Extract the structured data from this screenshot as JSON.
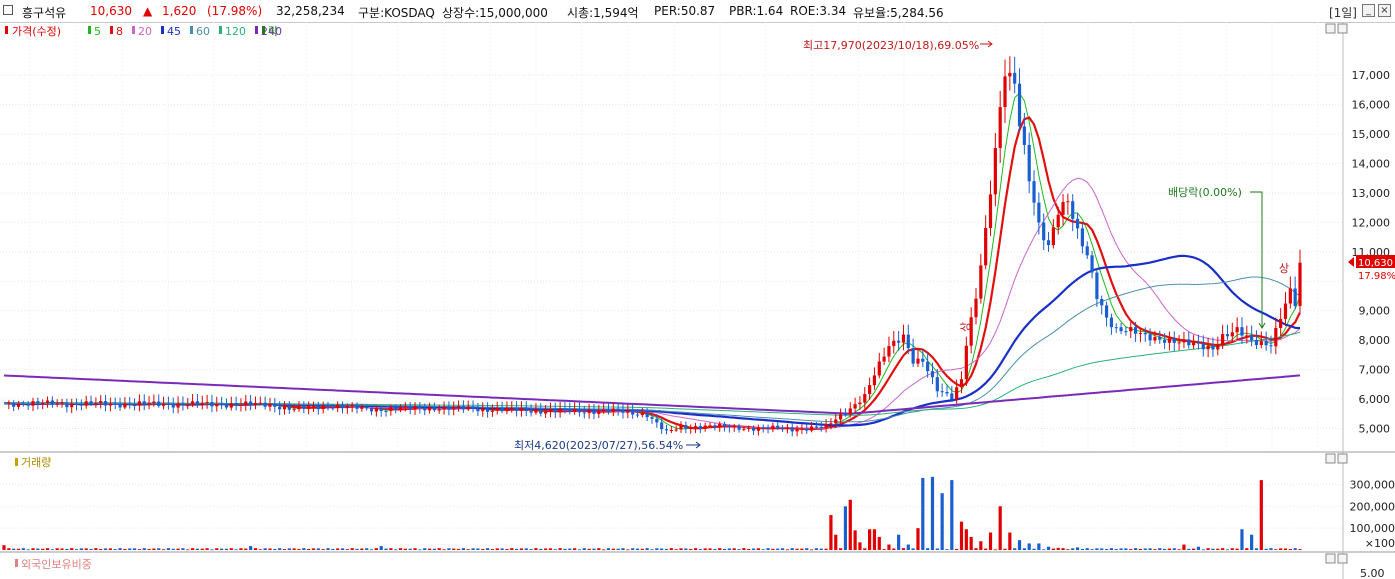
{
  "header": {
    "stock_name": "흥구석유",
    "price": "10,630",
    "arrow": "▲",
    "change": "1,620",
    "change_pct": "(17.98%)",
    "volume": "32,258,234",
    "market": "구분:KOSDAQ",
    "listed_shares": "상장수:15,000,000",
    "market_cap": "시총:1,594억",
    "per": "PER:50.87",
    "pbr": "PBR:1.64",
    "roe": "ROE:3.34",
    "float": "유보율:5,284.56",
    "period": "[1일]",
    "up_color": "#e00000"
  },
  "legend": {
    "price_label": "가격(수정)",
    "ma": [
      {
        "label": "5",
        "color": "#1fb81f"
      },
      {
        "label": "8",
        "color": "#e01010"
      },
      {
        "label": "20",
        "color": "#cc66cc"
      },
      {
        "label": "45",
        "color": "#1a2fc8"
      },
      {
        "label": "60",
        "color": "#4a8fb0"
      },
      {
        "label": "120",
        "color": "#2bb07a"
      },
      {
        "label": "240",
        "color": "#7a2ab8"
      }
    ],
    "ex_label": "락",
    "volume_label": "거래량",
    "foreign_label": "외국인보유비중"
  },
  "annotations": {
    "high": "최고17,970(2023/10/18),69.05%",
    "low": "최저4,620(2023/07/27),56.54%",
    "dividend": "배당락(0.00%)",
    "up_mark": "상"
  },
  "last_price_tag": {
    "price": "10,630",
    "pct": "17.98%"
  },
  "chart_data": [
    {
      "type": "candlestick",
      "title": "",
      "ylim": [
        4200,
        18400
      ],
      "yticks": [
        5000,
        6000,
        7000,
        8000,
        9000,
        10000,
        11000,
        12000,
        13000,
        14000,
        15000,
        16000,
        17000
      ],
      "ytick_labels": [
        "5,000",
        "6,000",
        "7,000",
        "8,000",
        "9,000",
        "",
        "11,000",
        "12,000",
        "13,000",
        "14,000",
        "15,000",
        "16,000",
        "17,000"
      ],
      "close_key": [
        [
          0,
          5850
        ],
        [
          20,
          5830
        ],
        [
          40,
          5820
        ],
        [
          55,
          5810
        ],
        [
          60,
          5650
        ],
        [
          68,
          5780
        ],
        [
          75,
          5650
        ],
        [
          90,
          5700
        ],
        [
          100,
          5650
        ],
        [
          110,
          5600
        ],
        [
          118,
          5580
        ],
        [
          125,
          5600
        ],
        [
          133,
          5480
        ],
        [
          137,
          4850
        ],
        [
          140,
          5050
        ],
        [
          145,
          5080
        ],
        [
          155,
          5010
        ],
        [
          163,
          4980
        ],
        [
          170,
          5050
        ],
        [
          175,
          5700
        ],
        [
          178,
          6100
        ],
        [
          180,
          6800
        ],
        [
          183,
          7800
        ],
        [
          186,
          8200
        ],
        [
          188,
          7300
        ],
        [
          190,
          7250
        ],
        [
          193,
          6300
        ],
        [
          196,
          6100
        ],
        [
          198,
          6700
        ],
        [
          199,
          7900
        ],
        [
          201,
          9400
        ],
        [
          203,
          11600
        ],
        [
          205,
          14500
        ],
        [
          207,
          17300
        ],
        [
          209,
          16800
        ],
        [
          210,
          15400
        ],
        [
          212,
          13400
        ],
        [
          214,
          11800
        ],
        [
          216,
          11200
        ],
        [
          218,
          12500
        ],
        [
          220,
          12800
        ],
        [
          222,
          11600
        ],
        [
          224,
          10800
        ],
        [
          226,
          9500
        ],
        [
          228,
          8800
        ],
        [
          230,
          8400
        ],
        [
          233,
          8300
        ],
        [
          236,
          8100
        ],
        [
          240,
          8050
        ],
        [
          245,
          7850
        ],
        [
          250,
          7750
        ],
        [
          252,
          8150
        ],
        [
          255,
          8300
        ],
        [
          258,
          7950
        ],
        [
          262,
          7900
        ],
        [
          264,
          8800
        ],
        [
          266,
          9600
        ],
        [
          267,
          9200
        ],
        [
          268,
          10630
        ]
      ],
      "n_days": 269,
      "series_names": [
        "5",
        "8",
        "20",
        "45",
        "60",
        "120",
        "240"
      ]
    },
    {
      "type": "bar",
      "title": "",
      "ylim": [
        0,
        380000
      ],
      "yticks": [
        100000,
        200000,
        300000
      ],
      "ytick_labels": [
        "100,000",
        "200,000",
        "300,000"
      ],
      "ytick_bottom_label": "×100",
      "spikes": [
        [
          0,
          22000
        ],
        [
          51,
          18000
        ],
        [
          78,
          18000
        ],
        [
          171,
          160000
        ],
        [
          172,
          70000
        ],
        [
          174,
          200000
        ],
        [
          175,
          230000
        ],
        [
          176,
          90000
        ],
        [
          177,
          35000
        ],
        [
          179,
          95000
        ],
        [
          180,
          95000
        ],
        [
          181,
          60000
        ],
        [
          183,
          25000
        ],
        [
          185,
          70000
        ],
        [
          187,
          25000
        ],
        [
          189,
          100000
        ],
        [
          190,
          330000
        ],
        [
          192,
          335000
        ],
        [
          194,
          260000
        ],
        [
          196,
          320000
        ],
        [
          198,
          130000
        ],
        [
          199,
          95000
        ],
        [
          200,
          60000
        ],
        [
          202,
          40000
        ],
        [
          204,
          80000
        ],
        [
          206,
          200000
        ],
        [
          208,
          80000
        ],
        [
          210,
          45000
        ],
        [
          212,
          30000
        ],
        [
          214,
          30000
        ],
        [
          216,
          15000
        ],
        [
          218,
          10000
        ],
        [
          222,
          12000
        ],
        [
          244,
          25000
        ],
        [
          247,
          15000
        ],
        [
          256,
          95000
        ],
        [
          258,
          70000
        ],
        [
          260,
          320000
        ]
      ]
    },
    {
      "type": "bar",
      "title": "",
      "ytick_labels": [
        "5.00"
      ]
    }
  ]
}
